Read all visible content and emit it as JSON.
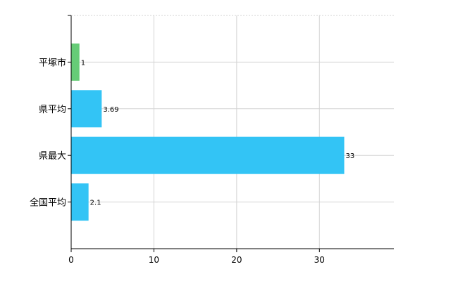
{
  "chart_data": {
    "type": "bar",
    "orientation": "horizontal",
    "categories": [
      "平塚市",
      "県平均",
      "県最大",
      "全国平均"
    ],
    "values": [
      1,
      3.69,
      33,
      2.1
    ],
    "value_labels": [
      "1",
      "3.69",
      "33",
      "2.1"
    ],
    "xlim": [
      0,
      39
    ],
    "x_ticks": [
      0,
      10,
      20,
      30
    ],
    "title": "",
    "xlabel": "",
    "ylabel": "",
    "grid": true,
    "legend": "none",
    "colors": {
      "highlight": "#66cc77",
      "default": "#33c4f5"
    },
    "bar_colors": [
      "#66cc77",
      "#33c4f5",
      "#33c4f5",
      "#33c4f5"
    ]
  }
}
